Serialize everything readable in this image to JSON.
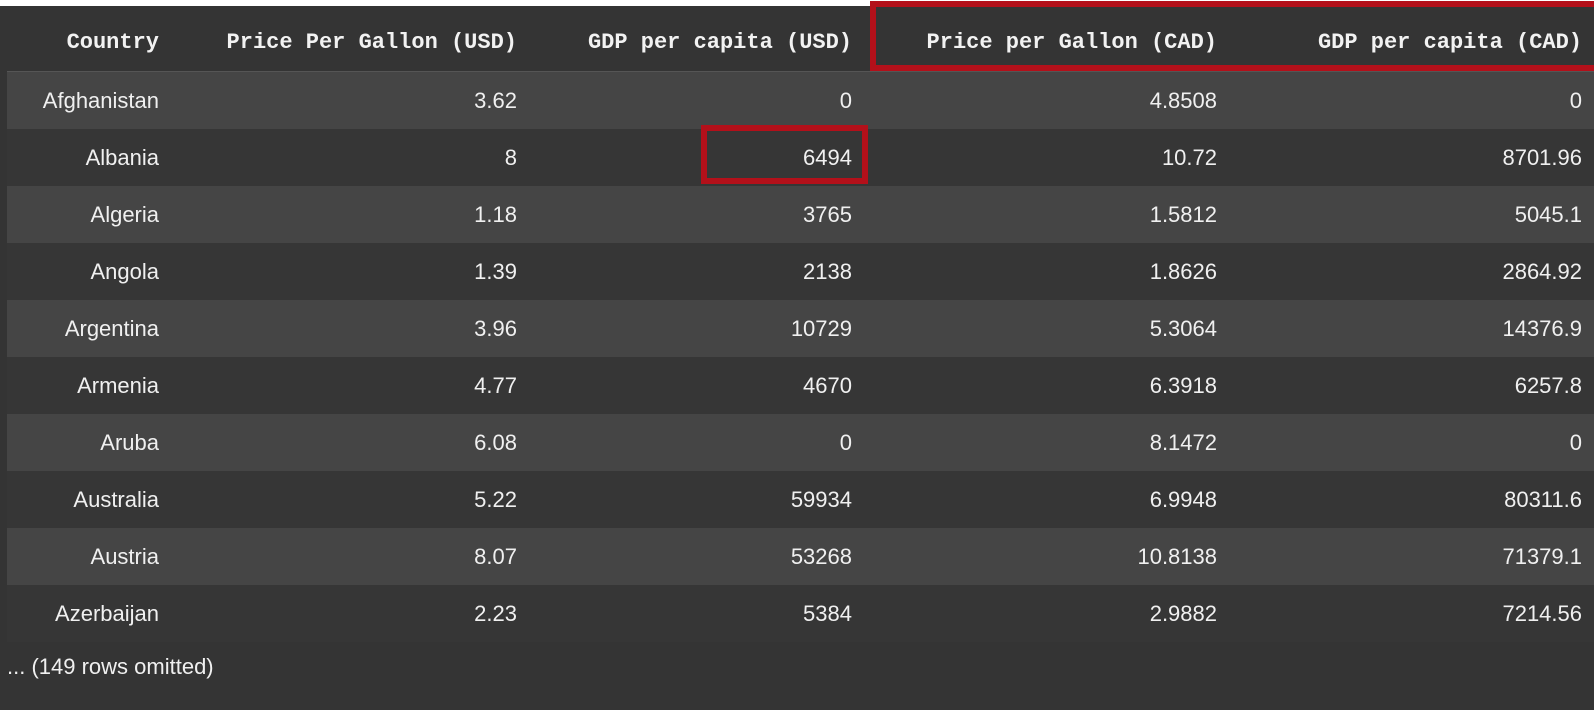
{
  "table": {
    "columns": [
      "Country",
      "Price Per Gallon (USD)",
      "GDP per capita (USD)",
      "Price per Gallon (CAD)",
      "GDP per capita (CAD)"
    ],
    "rows": [
      [
        "Afghanistan",
        "3.62",
        "0",
        "4.8508",
        "0"
      ],
      [
        "Albania",
        "8",
        "6494",
        "10.72",
        "8701.96"
      ],
      [
        "Algeria",
        "1.18",
        "3765",
        "1.5812",
        "5045.1"
      ],
      [
        "Angola",
        "1.39",
        "2138",
        "1.8626",
        "2864.92"
      ],
      [
        "Argentina",
        "3.96",
        "10729",
        "5.3064",
        "14376.9"
      ],
      [
        "Armenia",
        "4.77",
        "4670",
        "6.3918",
        "6257.8"
      ],
      [
        "Aruba",
        "6.08",
        "0",
        "8.1472",
        "0"
      ],
      [
        "Australia",
        "5.22",
        "59934",
        "6.9948",
        "80311.6"
      ],
      [
        "Austria",
        "8.07",
        "53268",
        "10.8138",
        "71379.1"
      ],
      [
        "Azerbaijan",
        "2.23",
        "5384",
        "2.9882",
        "7214.56"
      ]
    ],
    "omitted_note": "... (149 rows omitted)"
  },
  "highlights": {
    "color": "#b3101a",
    "header_columns": [
      "Price per Gallon (CAD)",
      "GDP per capita (CAD)"
    ],
    "cell": {
      "row": "Albania",
      "column": "GDP per capita (USD)",
      "value": "6494"
    }
  },
  "colors": {
    "background": "#343434",
    "row_odd": "#454545",
    "row_even": "#363636",
    "text": "#f0f0f0"
  }
}
